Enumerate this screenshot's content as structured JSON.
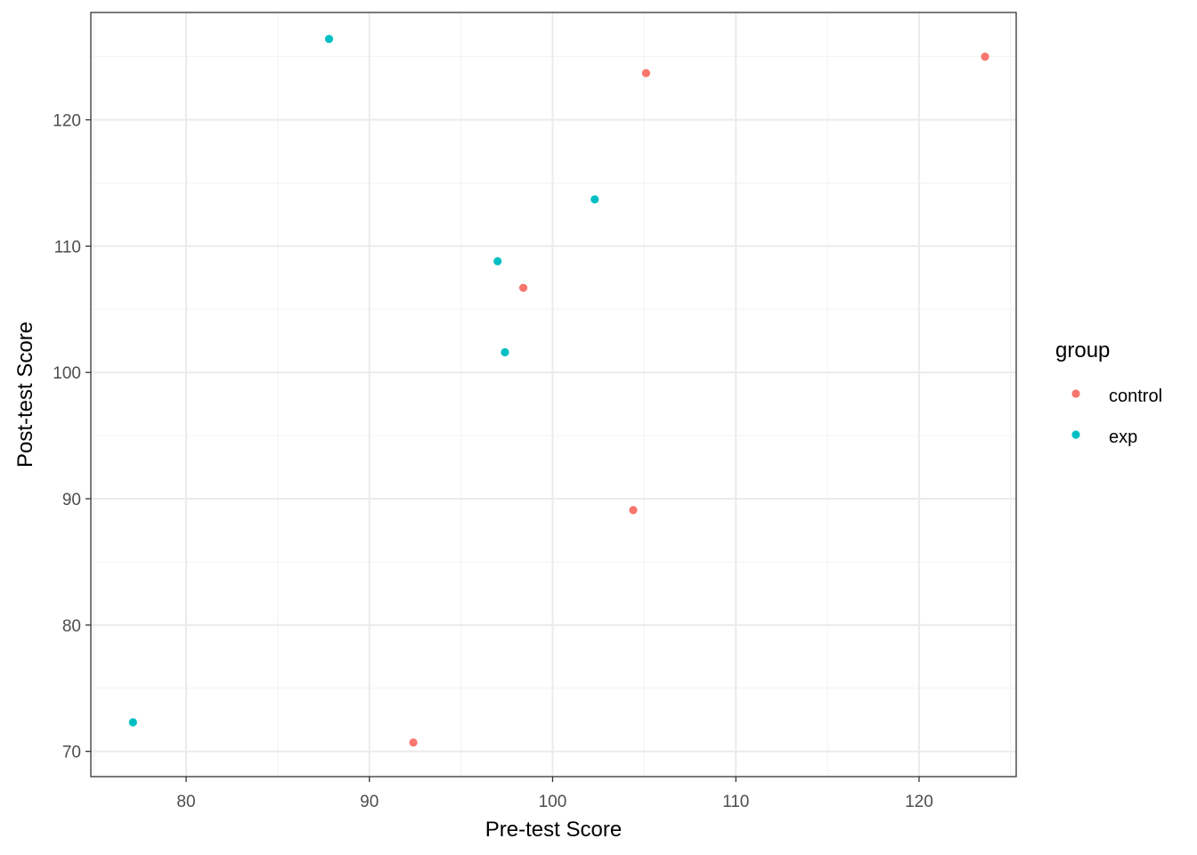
{
  "chart_data": {
    "type": "scatter",
    "title": "",
    "xlabel": "Pre-test Score",
    "ylabel": "Post-test Score",
    "xlim": [
      74.8,
      125.3
    ],
    "ylim": [
      68.0,
      128.5
    ],
    "x_ticks": [
      80,
      90,
      100,
      110,
      120
    ],
    "y_ticks": [
      70,
      80,
      90,
      100,
      110,
      120
    ],
    "grid": true,
    "legend": {
      "title": "group",
      "position": "right",
      "entries": [
        "control",
        "exp"
      ]
    },
    "series": [
      {
        "name": "control",
        "color": "#F8766D",
        "points": [
          {
            "x": 105.1,
            "y": 123.7
          },
          {
            "x": 123.6,
            "y": 125.0
          },
          {
            "x": 98.4,
            "y": 106.7
          },
          {
            "x": 104.4,
            "y": 89.1
          },
          {
            "x": 92.4,
            "y": 70.7
          }
        ]
      },
      {
        "name": "exp",
        "color": "#00BFC4",
        "points": [
          {
            "x": 87.8,
            "y": 126.4
          },
          {
            "x": 102.3,
            "y": 113.7
          },
          {
            "x": 97.0,
            "y": 108.8
          },
          {
            "x": 97.4,
            "y": 101.6
          },
          {
            "x": 77.1,
            "y": 72.3
          }
        ]
      }
    ]
  }
}
